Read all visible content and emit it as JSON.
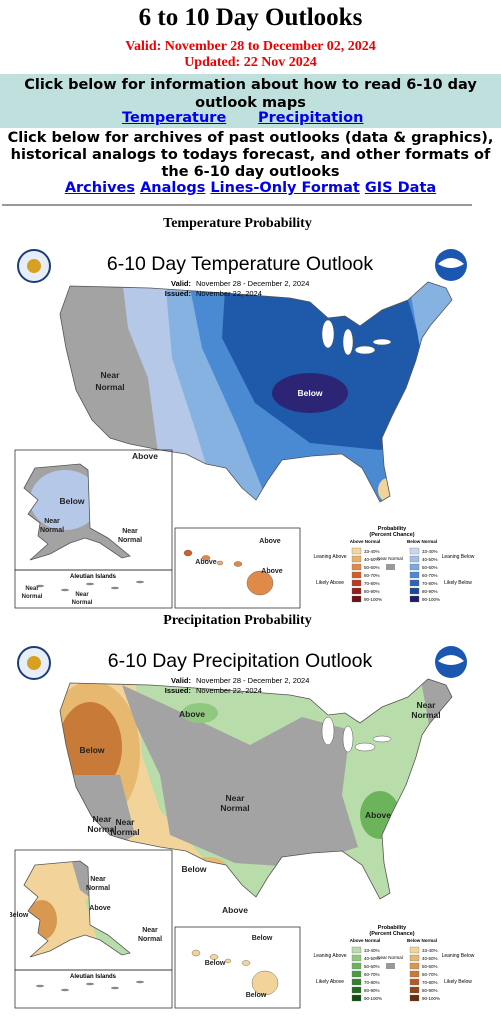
{
  "header": {
    "title": "6 to 10 Day Outlooks",
    "valid": "Valid: November 28 to December 02, 2024",
    "updated": "Updated: 22 Nov 2024"
  },
  "info_box": {
    "text": "Click below for information about how to read 6-10 day outlook maps",
    "links": [
      "Temperature",
      "Precipitation"
    ]
  },
  "archives": {
    "text": "Click below for archives of past outlooks (data & graphics), historical analogs to todays forecast, and other formats of the 6-10 day outlooks",
    "links": [
      "Archives",
      "Analogs",
      "Lines-Only Format",
      "GIS Data"
    ]
  },
  "maps": [
    {
      "heading": "Temperature Probability",
      "title": "6-10 Day Temperature Outlook",
      "valid_label": "Valid:",
      "valid": "November 28 - December 2, 2024",
      "issued_label": "Issued:",
      "issued": "November 22, 2024",
      "region_labels": [
        "Near",
        "Normal",
        "Below",
        "Above",
        "Below",
        "Near",
        "Normal",
        "Near",
        "Normal",
        "Near",
        "Normal",
        "Near",
        "Normal",
        "Above",
        "Above",
        "Above"
      ],
      "aleutian": "Aleutian Islands",
      "legend": {
        "title": "Probability",
        "subtitle": "(Percent Chance)",
        "above": "Above Normal",
        "below": "Below Normal",
        "near": "Near Normal",
        "left_top": "Leaning Above",
        "left_bottom": "Likely Above",
        "right_top": "Leaning Below",
        "right_bottom": "Likely Below",
        "ranges": [
          "33-40%",
          "40-50%",
          "50-60%",
          "60-70%",
          "70-80%",
          "80-90%",
          "90-100%"
        ]
      }
    },
    {
      "heading": "Precipitation Probability",
      "title": "6-10 Day Precipitation Outlook",
      "valid_label": "Valid:",
      "valid": "November 28 - December 2, 2024",
      "issued_label": "Issued:",
      "issued": "November 22, 2024",
      "region_labels": [
        "Below",
        "Above",
        "Near",
        "Normal",
        "Near",
        "Normal",
        "Near",
        "Normal",
        "Below",
        "Above",
        "Above",
        "Near",
        "Normal",
        "Near",
        "Normal",
        "Above",
        "Below",
        "Near",
        "Normal",
        "Below",
        "Below",
        "Below"
      ],
      "aleutian": "Aleutian Islands",
      "legend": {
        "title": "Probability",
        "subtitle": "(Percent Chance)",
        "above": "Above Normal",
        "below": "Below Normal",
        "near": "Near Normal",
        "left_top": "Leaning Above",
        "left_bottom": "Likely Above",
        "right_top": "Leaning Below",
        "right_bottom": "Likely Below",
        "ranges": [
          "33-40%",
          "40-50%",
          "50-60%",
          "60-70%",
          "70-80%",
          "80-90%",
          "90-100%"
        ]
      }
    }
  ]
}
